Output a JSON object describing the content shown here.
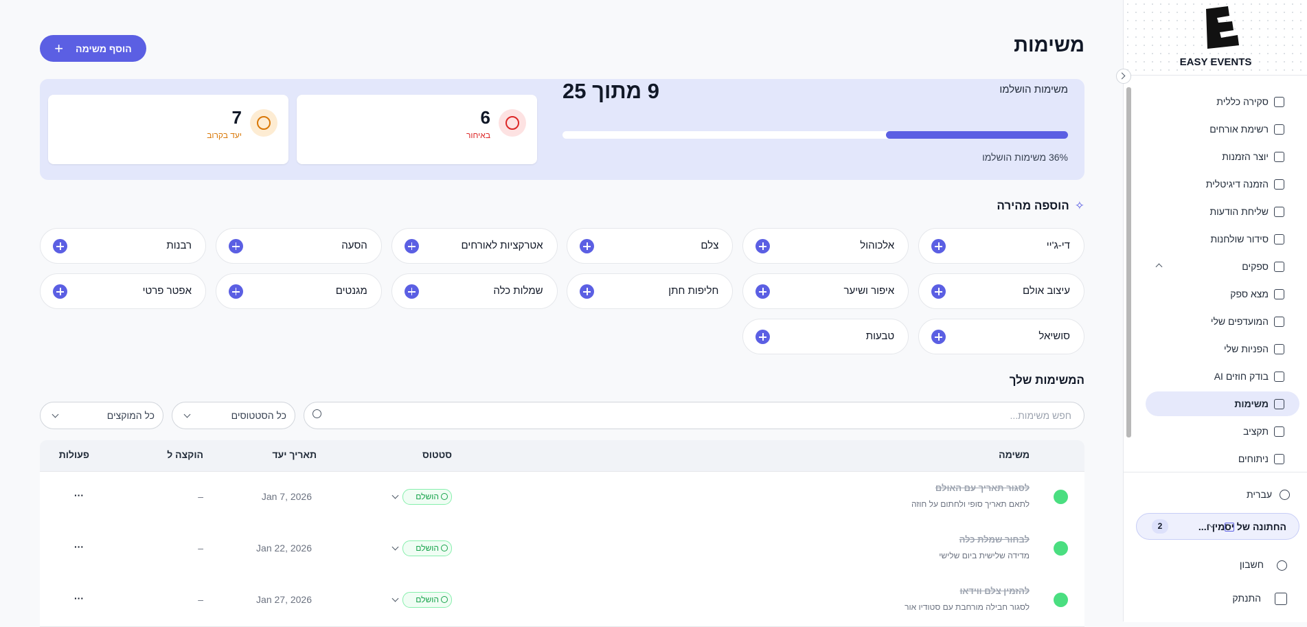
{
  "header": {
    "title": "משימות",
    "add_button": "הוסף משימה"
  },
  "progress": {
    "label": "משימות הושלמו",
    "count": "9 מתוך 25",
    "percent": 36,
    "percent_label": "36% משימות הושלמו"
  },
  "stats": [
    {
      "value": 6,
      "label": "באיחור"
    },
    {
      "value": 7,
      "label": "יעד בקרוב"
    }
  ],
  "quick_add": {
    "title": "הוספה מהירה",
    "items": [
      "די-ג'יי",
      "אלכוהול",
      "צלם",
      "אטרקציות לאורחים",
      "הסעה",
      "רבנות",
      "עיצוב אולם",
      "איפור ושיער",
      "חליפות חתן",
      "שמלות כלה",
      "מגנטים",
      "אפטר פרטי",
      "סושיאל",
      "טבעות"
    ]
  },
  "tasks": {
    "title": "המשימות שלך",
    "search_placeholder": "חפש משימות...",
    "filters": [
      "כל הסטטוסים",
      "כל המוקצים"
    ],
    "columns": [
      "משימה",
      "סטטוס",
      "תאריך יעד",
      "הוקצה ל",
      "פעולות"
    ],
    "rows": [
      {
        "title": "לסגור תאריך עם האולם",
        "subtitle": "לתאם תאריך סופי ולחתום על חוזה",
        "status": "הושלם",
        "due": "Jan 7, 2026",
        "assignee": "–",
        "actions": "···"
      },
      {
        "title": "לבחור שמלת כלה",
        "subtitle": "מדידה שלישית ביום שלישי",
        "status": "הושלם",
        "due": "Jan 22, 2026",
        "assignee": "–",
        "actions": "···"
      },
      {
        "title": "להזמין צלם ווידאו",
        "subtitle": "לסגור חבילה מורחבת עם סטודיו אור",
        "status": "הושלם",
        "due": "Jan 27, 2026",
        "assignee": "–",
        "actions": "···"
      }
    ]
  },
  "sidebar": {
    "brand": "EASY EVENTS",
    "nav": [
      {
        "label": "סקירה כללית"
      },
      {
        "label": "רשימת אורחים"
      },
      {
        "label": "יוצר הזמנות"
      },
      {
        "label": "הזמנה דיגיטלית"
      },
      {
        "label": "שליחת הודעות"
      },
      {
        "label": "סידור שולחנות"
      },
      {
        "label": "ספקים"
      },
      {
        "label": "מצא ספק"
      },
      {
        "label": "המועדפים שלי"
      },
      {
        "label": "הפניות שלי"
      },
      {
        "label": "בודק חוזים AI"
      },
      {
        "label": "משימות",
        "active": true
      },
      {
        "label": "תקציב"
      },
      {
        "label": "ניתוחים"
      }
    ],
    "language": "עברית",
    "event": {
      "name": "החתונה של יסמין ו...",
      "count": 2
    },
    "account": "חשבון",
    "logout": "התנתק"
  }
}
